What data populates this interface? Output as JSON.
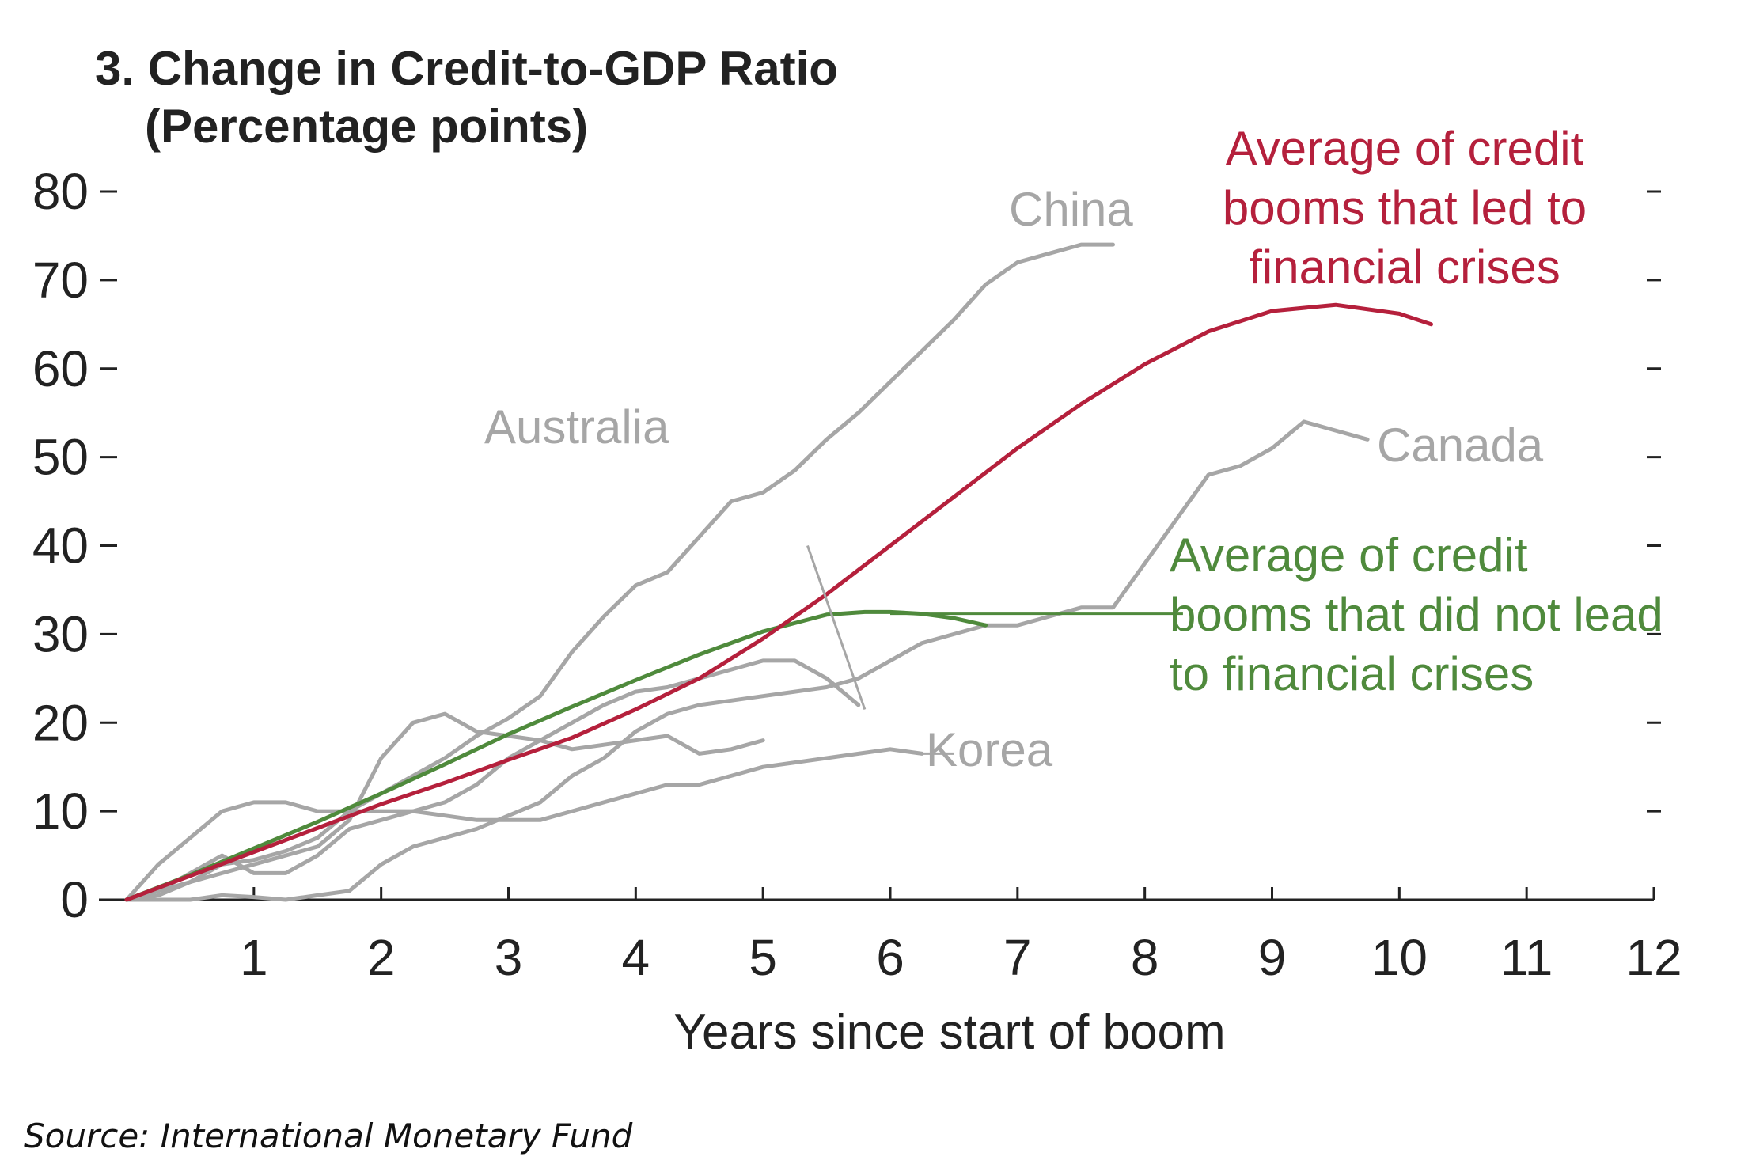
{
  "chart_data": {
    "type": "line",
    "title": "3. Change in Credit-to-GDP Ratio",
    "subtitle": "(Percentage points)",
    "xlabel": "Years since start of boom",
    "ylabel": "",
    "xlim": [
      0,
      12
    ],
    "ylim": [
      0,
      80
    ],
    "xticks": [
      1,
      2,
      3,
      4,
      5,
      6,
      7,
      8,
      9,
      10,
      11,
      12
    ],
    "yticks": [
      0,
      10,
      20,
      30,
      40,
      50,
      60,
      70,
      80
    ],
    "grid": false,
    "source": "Source: International Monetary Fund",
    "series": [
      {
        "name": "China",
        "color": "#a6a6a6",
        "x": [
          0,
          0.25,
          0.5,
          0.75,
          1.0,
          1.25,
          1.5,
          1.75,
          2.0,
          2.25,
          2.5,
          2.75,
          3.0,
          3.25,
          3.5,
          3.75,
          4.0,
          4.25,
          4.5,
          4.75,
          5.0,
          5.25,
          5.5,
          5.75,
          6.0,
          6.25,
          6.5,
          6.75,
          7.0,
          7.25,
          7.5,
          7.75
        ],
        "y": [
          0,
          0.5,
          2,
          4,
          4.5,
          5.5,
          7,
          10,
          12,
          14,
          16,
          18.5,
          20.5,
          23,
          28,
          32,
          35.5,
          37,
          41,
          45,
          46,
          48.5,
          52,
          55,
          58.5,
          62,
          65.5,
          69.5,
          72,
          73,
          74,
          74
        ]
      },
      {
        "name": "Australia",
        "color": "#a6a6a6",
        "x": [
          0,
          0.25,
          0.5,
          0.75,
          1.0,
          1.25,
          1.5,
          1.75,
          2.0,
          2.25,
          2.5,
          2.75,
          3.0,
          3.25,
          3.5,
          3.75,
          4.0,
          4.25,
          4.5,
          4.75,
          5.0,
          5.25,
          5.5,
          5.75
        ],
        "y": [
          0,
          1,
          3,
          5,
          3,
          3,
          5,
          8,
          9,
          10,
          11,
          13,
          16,
          18,
          20,
          22,
          23.5,
          24,
          25,
          26,
          27,
          27,
          25,
          22
        ]
      },
      {
        "name": "Canada",
        "color": "#a6a6a6",
        "x": [
          0,
          0.25,
          0.5,
          0.75,
          1.0,
          1.25,
          1.5,
          1.75,
          2.0,
          2.25,
          2.5,
          2.75,
          3.0,
          3.25,
          3.5,
          3.75,
          4.0,
          4.25,
          4.5,
          4.75,
          5.0,
          5.25,
          5.5,
          5.75,
          6.0,
          6.25,
          6.5,
          6.75,
          7.0,
          7.25,
          7.5,
          7.75,
          8.0,
          8.25,
          8.5,
          8.75,
          9.0,
          9.25,
          9.5,
          9.75
        ],
        "y": [
          0,
          0,
          0,
          0.5,
          0.3,
          0,
          0.5,
          1,
          4,
          6,
          7,
          8,
          9.5,
          11,
          14,
          16,
          19,
          21,
          22,
          22.5,
          23,
          23.5,
          24,
          25,
          27,
          29,
          30,
          31,
          31,
          32,
          33,
          33,
          38,
          43,
          48,
          49,
          51,
          54,
          53,
          52
        ]
      },
      {
        "name": "Korea",
        "color": "#a6a6a6",
        "x": [
          0,
          0.25,
          0.5,
          0.75,
          1.0,
          1.25,
          1.5,
          1.75,
          2.0,
          2.25,
          2.5,
          2.75,
          3.0,
          3.25,
          3.5,
          3.75,
          4.0,
          4.25,
          4.5,
          4.75,
          5.0,
          5.25,
          5.5,
          5.75,
          6.0,
          6.25
        ],
        "y": [
          0,
          4,
          7,
          10,
          11,
          11,
          10,
          10,
          10,
          10,
          9.5,
          9,
          9,
          9,
          10,
          11,
          12,
          13,
          13,
          14,
          15,
          15.5,
          16,
          16.5,
          17,
          16.5
        ]
      },
      {
        "name": "",
        "color": "#a6a6a6",
        "x": [
          0,
          0.25,
          0.5,
          0.75,
          1.0,
          1.25,
          1.5,
          1.75,
          2.0,
          2.25,
          2.5,
          2.75,
          3.0,
          3.25,
          3.5,
          3.75,
          4.0,
          4.25,
          4.5,
          4.75,
          5.0
        ],
        "y": [
          0,
          1,
          2,
          3,
          4,
          5,
          6,
          9,
          16,
          20,
          21,
          19,
          18.5,
          18,
          17,
          17.5,
          18,
          18.5,
          16.5,
          17,
          18
        ]
      },
      {
        "name": "Average of credit booms that led to financial crises",
        "color": "#b5203c",
        "x": [
          0,
          0.5,
          1,
          1.5,
          2,
          2.5,
          3,
          3.5,
          4,
          4.5,
          5,
          5.5,
          6,
          6.5,
          7,
          7.5,
          8,
          8.5,
          9,
          9.5,
          10,
          10.25
        ],
        "y": [
          0,
          2.7,
          5.4,
          8.1,
          10.8,
          13.2,
          15.8,
          18.3,
          21.5,
          25,
          29.5,
          34.5,
          40,
          45.5,
          51,
          56,
          60.5,
          64.2,
          66.5,
          67.2,
          66.2,
          65
        ]
      },
      {
        "name": "Average of credit booms that did not lead to financial crises",
        "color": "#4f8a3c",
        "x": [
          0,
          0.5,
          1,
          1.5,
          2,
          2.5,
          3,
          3.5,
          4,
          4.5,
          5,
          5.5,
          5.8,
          6,
          6.25,
          6.5,
          6.75
        ],
        "y": [
          0,
          2.8,
          5.8,
          8.8,
          12,
          15.3,
          18.7,
          21.8,
          24.8,
          27.7,
          30.3,
          32.2,
          32.5,
          32.5,
          32.3,
          31.8,
          31
        ]
      }
    ],
    "annotations": [
      {
        "text": "China",
        "color": "#a6a6a6"
      },
      {
        "text": "Australia",
        "color": "#a6a6a6"
      },
      {
        "text": "Canada",
        "color": "#a6a6a6"
      },
      {
        "text": "Korea",
        "color": "#a6a6a6"
      },
      {
        "lines": [
          "Average of credit",
          "booms that led to",
          "financial crises"
        ],
        "color": "#b5203c"
      },
      {
        "lines": [
          "Average of credit",
          "booms that did not lead",
          "to financial crises"
        ],
        "color": "#4f8a3c"
      }
    ]
  }
}
